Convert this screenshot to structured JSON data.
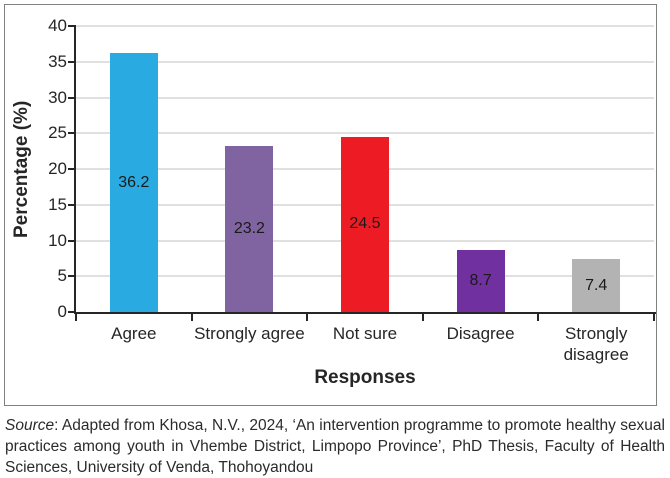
{
  "chart_data": {
    "type": "bar",
    "title": "",
    "categories": [
      "Agree",
      "Strongly agree",
      "Not sure",
      "Disagree",
      "Strongly disagree"
    ],
    "values": [
      36.2,
      23.2,
      24.5,
      8.7,
      7.4
    ],
    "data_labels": [
      "36.2",
      "23.2",
      "24.5",
      "8.7",
      "7.4"
    ],
    "bar_colors": [
      "#29abe2",
      "#8064a2",
      "#ed1c24",
      "#7030a0",
      "#b3b3b3"
    ],
    "xlabel": "Responses",
    "ylabel": "Percentage (%)",
    "ylim": [
      0,
      40
    ],
    "ytick_interval": 5,
    "ytick_labels": [
      "0",
      "5",
      "10",
      "15",
      "20",
      "25",
      "30",
      "35",
      "40"
    ],
    "grid": "horizontal",
    "legend": "none"
  },
  "colors": {
    "axis": "#262626",
    "gridline": "#e0e0e0",
    "chart_border": "#808080",
    "data_label_text": "#1a1a1a"
  },
  "source": {
    "label": "Source",
    "text": ": Adapted from Khosa, N.V., 2024, ‘An intervention programme to promote healthy sexual practices among youth in Vhembe District, Limpopo Province’, PhD Thesis, Faculty of Health Sciences, University of Venda, Thohoyandou"
  }
}
